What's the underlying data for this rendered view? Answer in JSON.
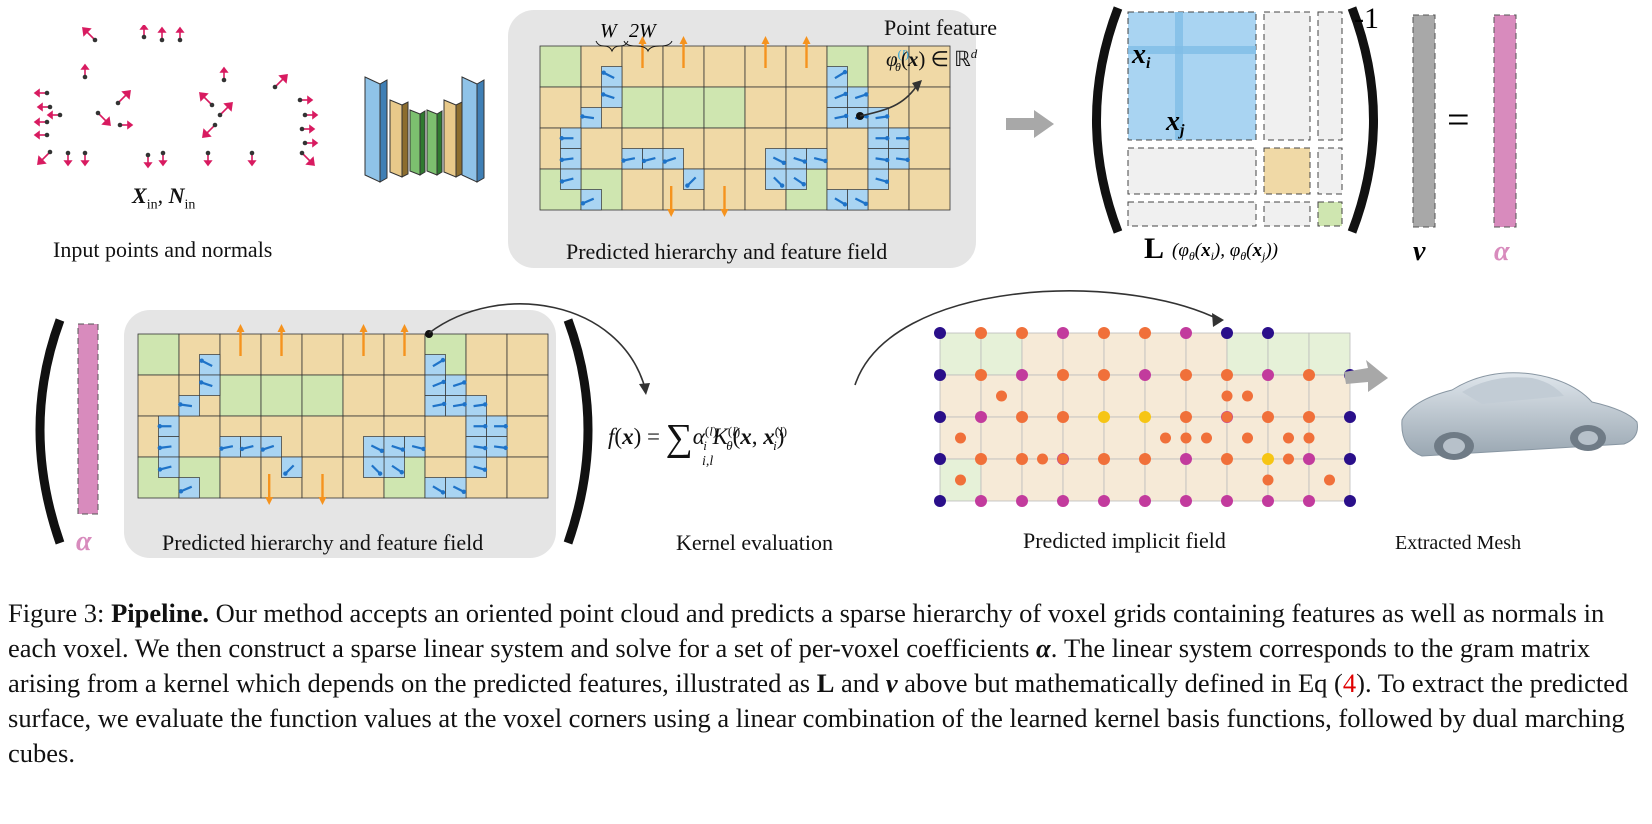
{
  "figure": {
    "top_row": {
      "input_label": "Input points and normals",
      "input_symbol_x": "X",
      "input_symbol_n": "N",
      "input_subscript": "in",
      "hierarchy_label": "Predicted hierarchy and feature field",
      "point_feature_label": "Point feature",
      "width_label_w": "W",
      "width_label_2w": "2W",
      "matrix_exponent": "-1",
      "matrix_xi": "x",
      "matrix_xj": "x",
      "matrix_L": "L",
      "vector_v": "v",
      "vector_alpha": "α",
      "equals": "="
    },
    "bottom_row": {
      "alpha_label": "α",
      "hierarchy_label": "Predicted hierarchy and feature field",
      "kernel_label": "Kernel evaluation",
      "implicit_label": "Predicted implicit field",
      "mesh_label": "Extracted Mesh"
    },
    "colors": {
      "point_pink": "#d81b60",
      "voxel_green": "#cfe6b0",
      "voxel_tan": "#f0d9a6",
      "voxel_blue": "#a9d4f2",
      "normal_blue": "#1e73c8",
      "normal_orange": "#f5931e",
      "alpha_pink": "#d88bbd",
      "v_gray": "#a8a8a8",
      "matrix_blue": "#a9d4f2",
      "panel_gray": "#e5e5e5"
    }
  },
  "caption": {
    "figure_number": "Figure 3:",
    "title": "Pipeline.",
    "text_1": "Our method accepts an oriented point cloud and predicts a sparse hierarchy of voxel grids containing features as well as normals in each voxel. We then construct a sparse linear system and solve for a set of per-voxel coefficients",
    "alpha_symbol": "α",
    "text_2": ". The linear system corresponds to the gram matrix arising from a kernel which depends on the predicted features, illustrated as",
    "L_symbol": "L",
    "text_3": "and",
    "v_symbol": "v",
    "text_4": "above but mathematically defined in Eq (",
    "eq_ref": "4",
    "text_5": "). To extract the predicted surface, we evaluate the function values at the voxel corners using a linear combination of the learned kernel basis functions, followed by dual marching cubes."
  }
}
